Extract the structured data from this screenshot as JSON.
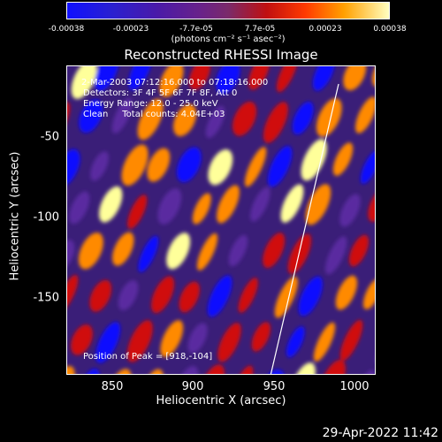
{
  "colorbar": {
    "ticks": [
      "-0.00038",
      "-0.00023",
      "-7.7e-05",
      "7.7e-05",
      "0.00023",
      "0.00038"
    ],
    "unit": "(photons cm⁻² s⁻¹ asec⁻²)"
  },
  "title": "Reconstructed RHESSI Image",
  "info": {
    "time_range": "2-Mar-2003 07:12:16.000 to 07:18:16.000",
    "detectors": "Detectors: 3F 4F 5F 6F 7F 8F, Att 0",
    "energy": "Energy Range: 12.0 - 25.0 keV",
    "method_counts": "Clean     Total counts: 4.04E+03",
    "peak": "Position of Peak = [918,-104]"
  },
  "axes": {
    "xlabel": "Heliocentric X (arcsec)",
    "ylabel": "Heliocentric Y (arcsec)",
    "xticks": [
      "850",
      "900",
      "950",
      "1000"
    ],
    "yticks": [
      "-50",
      "-100",
      "-150"
    ]
  },
  "timestamp": "29-Apr-2022 11:42",
  "colors": {
    "blue": "#1010ff",
    "purple": "#5a2aa0",
    "red": "#d01010",
    "orange": "#ff8a00",
    "yellow": "#ffff9a"
  }
}
